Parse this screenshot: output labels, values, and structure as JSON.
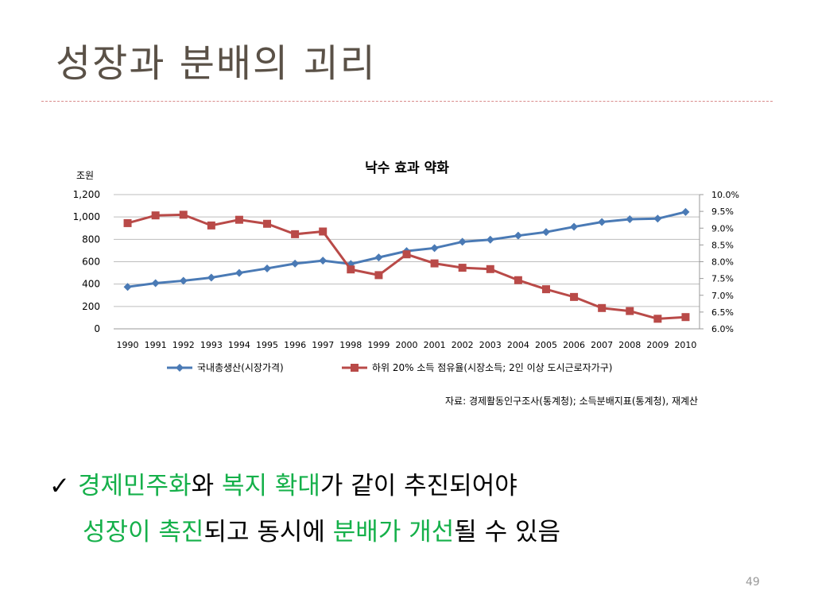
{
  "slide": {
    "title": "성장과 분배의 괴리",
    "source_note": "자료: 경제활동인구조사(통계청); 소득분배지표(통계청), 재계산",
    "bullet": {
      "check_icon": "check-icon",
      "line1": [
        {
          "text": "경제민주화",
          "highlight": true
        },
        {
          "text": "와 ",
          "highlight": false
        },
        {
          "text": "복지 확대",
          "highlight": true
        },
        {
          "text": "가 같이 추진되어야",
          "highlight": false
        }
      ],
      "line2": [
        {
          "text": "성장이 촉진",
          "highlight": true
        },
        {
          "text": "되고 동시에 ",
          "highlight": false
        },
        {
          "text": "분배가 개선",
          "highlight": true
        },
        {
          "text": "될 수 있음",
          "highlight": false
        }
      ]
    },
    "page_number": "49",
    "highlight_color": "#15b04a"
  },
  "chart_data": {
    "type": "line",
    "title": "낙수 효과 약화",
    "left_axis_unit": "조원",
    "categories": [
      "1990",
      "1991",
      "1992",
      "1993",
      "1994",
      "1995",
      "1996",
      "1997",
      "1998",
      "1999",
      "2000",
      "2001",
      "2002",
      "2003",
      "2004",
      "2005",
      "2006",
      "2007",
      "2008",
      "2009",
      "2010"
    ],
    "y_left": {
      "min": 0,
      "max": 1200,
      "ticks": [
        "0",
        "200",
        "400",
        "600",
        "800",
        "1,000",
        "1,200"
      ]
    },
    "y_right": {
      "min": 6.0,
      "max": 10.0,
      "ticks": [
        "6.0%",
        "6.5%",
        "7.0%",
        "7.5%",
        "8.0%",
        "8.5%",
        "9.0%",
        "9.5%",
        "10.0%"
      ]
    },
    "grid": true,
    "legend_position": "bottom",
    "series": [
      {
        "name": "국내총생산(시장가격)",
        "axis": "left",
        "marker": "diamond",
        "color": "#4a7ab5",
        "values": [
          375,
          408,
          430,
          458,
          500,
          540,
          583,
          610,
          580,
          638,
          695,
          722,
          778,
          797,
          833,
          865,
          912,
          955,
          980,
          985,
          1045
        ]
      },
      {
        "name": "하위 20% 소득 점유율(시장소득; 2인 이상 도시근로자가구)",
        "axis": "right",
        "marker": "square",
        "color": "#b94a48",
        "values": [
          9.15,
          9.38,
          9.4,
          9.08,
          9.25,
          9.13,
          8.82,
          8.9,
          7.77,
          7.6,
          8.22,
          7.95,
          7.82,
          7.78,
          7.45,
          7.18,
          6.95,
          6.62,
          6.53,
          6.3,
          6.35
        ]
      }
    ]
  }
}
